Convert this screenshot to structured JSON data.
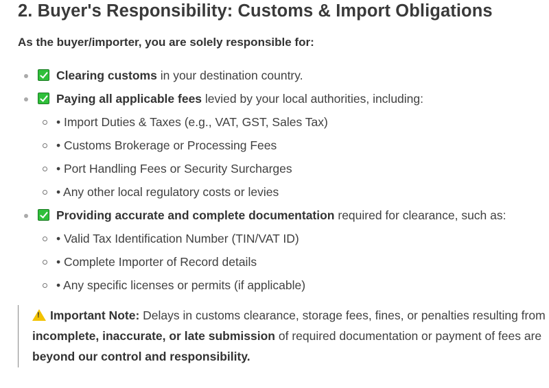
{
  "title": "2. Buyer's Responsibility: Customs & Import Obligations",
  "intro": "As the buyer/importer, you are solely responsible for:",
  "items": [
    {
      "bold": "Clearing customs",
      "rest": " in your destination country.",
      "icon": "check-mark-button-icon"
    },
    {
      "bold": "Paying all applicable fees",
      "rest": " levied by your local authorities, including:",
      "icon": "check-mark-button-icon",
      "sub": [
        "• Import Duties & Taxes (e.g., VAT, GST, Sales Tax)",
        "• Customs Brokerage or Processing Fees",
        "• Port Handling Fees or Security Surcharges",
        "• Any other local regulatory costs or levies"
      ]
    },
    {
      "bold": "Providing accurate and complete documentation",
      "rest": " required for clearance, such as:",
      "icon": "check-mark-button-icon",
      "sub": [
        "• Valid Tax Identification Number (TIN/VAT ID)",
        "• Complete Importer of Record details",
        "• Any specific licenses or permits (if applicable)"
      ]
    }
  ],
  "note": {
    "icon": "warning-icon",
    "label": "Important Note:",
    "t1": " Delays in customs clearance, storage fees, fines, or penalties resulting from ",
    "b1": "incomplete, inaccurate, or late submission",
    "t2": " of required documentation or payment of fees are ",
    "b2": "beyond our control and responsibility."
  }
}
